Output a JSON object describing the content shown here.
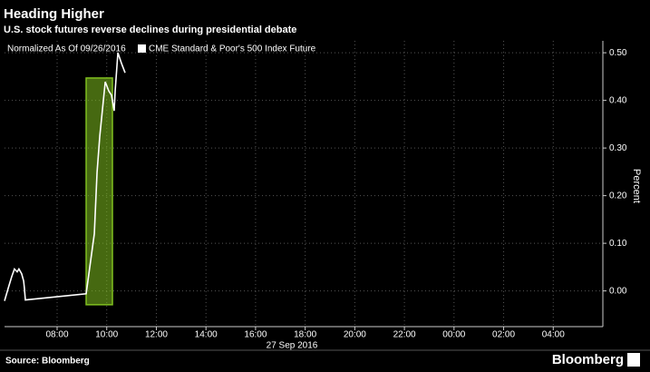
{
  "chart_data": {
    "type": "line",
    "title": "Heading Higher",
    "subtitle": "U.S. stock futures reverse declines during presidential debate",
    "note": "Normalized As Of 09/26/2016",
    "x_label": "27 Sep 2016",
    "y_label": "Percent",
    "source": "Source: Bloomberg",
    "brand": "Bloomberg",
    "x": [
      5.88,
      6.03,
      6.17,
      6.28,
      6.39,
      6.46,
      6.57,
      6.65,
      6.68,
      6.72,
      9.17,
      9.5,
      9.61,
      9.72,
      9.94,
      10.08,
      10.19,
      10.3,
      10.34,
      10.45,
      10.6,
      10.74
    ],
    "series": [
      {
        "name": "CME Standard & Poor's 500 Index Future",
        "color": "#ffffff",
        "values": [
          -0.021,
          0.006,
          0.03,
          0.046,
          0.04,
          0.046,
          0.036,
          0.021,
          0.006,
          -0.019,
          -0.006,
          0.12,
          0.249,
          0.325,
          0.439,
          0.42,
          0.411,
          0.378,
          0.42,
          0.5,
          0.477,
          0.458
        ]
      }
    ],
    "highlight": {
      "x": [
        9.17,
        10.23
      ],
      "y": [
        -0.029,
        0.447
      ],
      "color": "#7fbf1f"
    },
    "xlim": [
      5.88,
      30
    ],
    "xticks": [
      {
        "value": 8,
        "label": "08:00"
      },
      {
        "value": 10,
        "label": "10:00"
      },
      {
        "value": 12,
        "label": "12:00"
      },
      {
        "value": 14,
        "label": "14:00"
      },
      {
        "value": 16,
        "label": "16:00"
      },
      {
        "value": 18,
        "label": "18:00"
      },
      {
        "value": 20,
        "label": "20:00"
      },
      {
        "value": 22,
        "label": "22:00"
      },
      {
        "value": 24,
        "label": "00:00"
      },
      {
        "value": 26,
        "label": "02:00"
      },
      {
        "value": 28,
        "label": "04:00"
      }
    ],
    "ylim": [
      -0.075,
      0.525
    ],
    "yticks": [
      {
        "value": 0,
        "label": "0.00"
      },
      {
        "value": 0.1,
        "label": "0.10"
      },
      {
        "value": 0.2,
        "label": "0.20"
      },
      {
        "value": 0.3,
        "label": "0.30"
      },
      {
        "value": 0.4,
        "label": "0.40"
      },
      {
        "value": 0.5,
        "label": "0.50"
      }
    ],
    "grid": true
  }
}
